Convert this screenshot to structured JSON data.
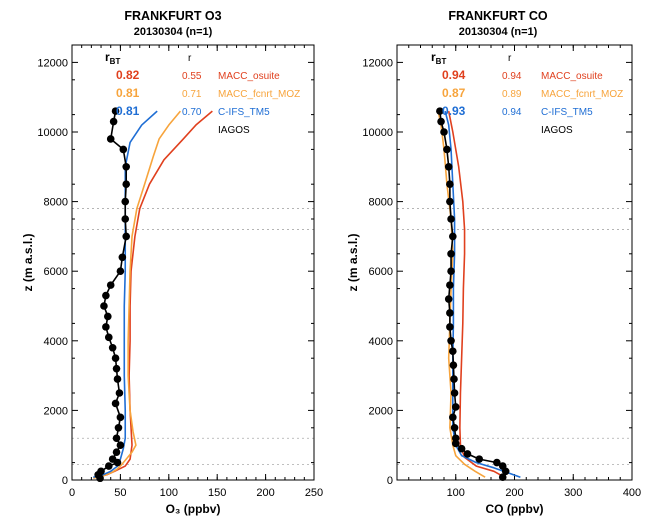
{
  "chart_data": [
    {
      "type": "line",
      "title": "FRANKFURT O3",
      "subtitle": "20130304 (n=1)",
      "xlabel": "O₃ (ppbv)",
      "ylabel": "z (m a.s.l.)",
      "xlim": [
        0,
        250
      ],
      "ylim": [
        0,
        12500
      ],
      "xticks": [
        "0",
        "50",
        "100",
        "150",
        "200",
        "250"
      ],
      "yticks": [
        "0",
        "2000",
        "4000",
        "6000",
        "8000",
        "10000",
        "12000"
      ],
      "hlines": [
        450,
        1200,
        7200,
        7800
      ],
      "stats_header": {
        "rbt_main": "r",
        "rbt_sub": "BT",
        "r": "r"
      },
      "legend_placement": "top-right",
      "series": [
        {
          "name": "MACC_osuite",
          "rbt": "0.82",
          "r": "0.55",
          "color": "#e0401e",
          "points": [
            [
              26,
              80
            ],
            [
              36,
              150
            ],
            [
              44,
              250
            ],
            [
              55,
              400
            ],
            [
              60,
              600
            ],
            [
              62,
              1000
            ],
            [
              61,
              1500
            ],
            [
              60,
              2000
            ],
            [
              59,
              3000
            ],
            [
              60,
              4000
            ],
            [
              60,
              5000
            ],
            [
              61,
              6000
            ],
            [
              65,
              7000
            ],
            [
              70,
              7800
            ],
            [
              80,
              8500
            ],
            [
              95,
              9200
            ],
            [
              115,
              9800
            ],
            [
              128,
              10200
            ],
            [
              145,
              10600
            ]
          ]
        },
        {
          "name": "MACC_fcnrt_MOZ",
          "rbt": "0.81",
          "r": "0.71",
          "color": "#f7a43c",
          "points": [
            [
              22,
              50
            ],
            [
              32,
              120
            ],
            [
              40,
              200
            ],
            [
              46,
              300
            ],
            [
              50,
              400
            ],
            [
              56,
              600
            ],
            [
              62,
              800
            ],
            [
              66,
              1000
            ],
            [
              63,
              1400
            ],
            [
              60,
              2000
            ],
            [
              58,
              3000
            ],
            [
              58,
              4000
            ],
            [
              59,
              5000
            ],
            [
              60,
              6000
            ],
            [
              62,
              7000
            ],
            [
              67,
              7800
            ],
            [
              75,
              8500
            ],
            [
              84,
              9300
            ],
            [
              90,
              9800
            ],
            [
              100,
              10200
            ],
            [
              112,
              10600
            ]
          ]
        },
        {
          "name": "C-IFS_TM5",
          "rbt": "0.81",
          "r": "0.70",
          "color": "#1f6ed4",
          "points": [
            [
              22,
              80
            ],
            [
              32,
              150
            ],
            [
              40,
              250
            ],
            [
              47,
              400
            ],
            [
              50,
              600
            ],
            [
              53,
              900
            ],
            [
              55,
              1200
            ],
            [
              55,
              2000
            ],
            [
              54,
              3000
            ],
            [
              54,
              4000
            ],
            [
              54,
              5000
            ],
            [
              55,
              6000
            ],
            [
              55,
              7000
            ],
            [
              55,
              8000
            ],
            [
              55,
              9000
            ],
            [
              60,
              9700
            ],
            [
              72,
              10200
            ],
            [
              88,
              10600
            ]
          ]
        },
        {
          "name": "IAGOS",
          "rbt": "",
          "r": "",
          "color": "#000000",
          "points": [
            [
              29,
              50
            ],
            [
              27,
              150
            ],
            [
              30,
              250
            ],
            [
              38,
              400
            ],
            [
              47,
              500
            ],
            [
              42,
              600
            ],
            [
              46,
              800
            ],
            [
              50,
              1000
            ],
            [
              46,
              1200
            ],
            [
              48,
              1500
            ],
            [
              50,
              1800
            ],
            [
              45,
              2200
            ],
            [
              49,
              2500
            ],
            [
              47,
              2900
            ],
            [
              46,
              3200
            ],
            [
              45,
              3500
            ],
            [
              42,
              3800
            ],
            [
              38,
              4100
            ],
            [
              35,
              4400
            ],
            [
              37,
              4700
            ],
            [
              33,
              5000
            ],
            [
              35,
              5300
            ],
            [
              40,
              5600
            ],
            [
              50,
              6000
            ],
            [
              52,
              6400
            ],
            [
              56,
              7000
            ],
            [
              55,
              7500
            ],
            [
              55,
              8000
            ],
            [
              56,
              8500
            ],
            [
              56,
              9000
            ],
            [
              53,
              9500
            ],
            [
              40,
              9800
            ],
            [
              43,
              10300
            ],
            [
              45,
              10600
            ]
          ]
        }
      ]
    },
    {
      "type": "line",
      "title": "FRANKFURT CO",
      "subtitle": "20130304 (n=1)",
      "xlabel": "CO (ppbv)",
      "ylabel": "z (m a.s.l.)",
      "xlim": [
        0,
        400
      ],
      "ylim": [
        0,
        12500
      ],
      "xticks": [
        "100",
        "200",
        "300",
        "400"
      ],
      "yticks": [
        "0",
        "2000",
        "4000",
        "6000",
        "8000",
        "10000",
        "12000"
      ],
      "hlines": [
        450,
        1200,
        7200,
        7800
      ],
      "stats_header": {
        "rbt_main": "r",
        "rbt_sub": "BT",
        "r": "r"
      },
      "legend_placement": "top-right",
      "series": [
        {
          "name": "MACC_osuite",
          "rbt": "0.94",
          "r": "0.94",
          "color": "#e0401e",
          "points": [
            [
              183,
              80
            ],
            [
              165,
              250
            ],
            [
              135,
              400
            ],
            [
              115,
              650
            ],
            [
              108,
              1000
            ],
            [
              107,
              1500
            ],
            [
              108,
              2500
            ],
            [
              110,
              3500
            ],
            [
              112,
              4500
            ],
            [
              113,
              5500
            ],
            [
              115,
              6500
            ],
            [
              115,
              7200
            ],
            [
              112,
              8000
            ],
            [
              105,
              9000
            ],
            [
              95,
              10000
            ],
            [
              88,
              10600
            ]
          ]
        },
        {
          "name": "MACC_fcnrt_MOZ",
          "rbt": "0.87",
          "r": "0.89",
          "color": "#f7a43c",
          "points": [
            [
              150,
              80
            ],
            [
              133,
              250
            ],
            [
              115,
              450
            ],
            [
              100,
              700
            ],
            [
              95,
              1000
            ],
            [
              90,
              1500
            ],
            [
              92,
              2500
            ],
            [
              88,
              3500
            ],
            [
              90,
              4500
            ],
            [
              92,
              5500
            ],
            [
              95,
              6500
            ],
            [
              92,
              7500
            ],
            [
              85,
              8500
            ],
            [
              80,
              9500
            ],
            [
              75,
              10200
            ],
            [
              70,
              10600
            ]
          ]
        },
        {
          "name": "C-IFS_TM5",
          "rbt": "0.93",
          "r": "0.94",
          "color": "#1f6ed4",
          "points": [
            [
              210,
              80
            ],
            [
              190,
              200
            ],
            [
              165,
              350
            ],
            [
              135,
              500
            ],
            [
              110,
              700
            ],
            [
              100,
              1000
            ],
            [
              95,
              1500
            ],
            [
              95,
              2500
            ],
            [
              95,
              3500
            ],
            [
              96,
              4500
            ],
            [
              96,
              5500
            ],
            [
              98,
              6500
            ],
            [
              98,
              7500
            ],
            [
              95,
              8500
            ],
            [
              92,
              9500
            ],
            [
              88,
              10200
            ],
            [
              82,
              10600
            ]
          ]
        },
        {
          "name": "IAGOS",
          "rbt": "",
          "r": "",
          "color": "#000000",
          "points": [
            [
              180,
              80
            ],
            [
              185,
              250
            ],
            [
              180,
              400
            ],
            [
              170,
              500
            ],
            [
              140,
              600
            ],
            [
              120,
              750
            ],
            [
              110,
              900
            ],
            [
              100,
              1050
            ],
            [
              100,
              1200
            ],
            [
              98,
              1500
            ],
            [
              95,
              1800
            ],
            [
              100,
              2100
            ],
            [
              98,
              2500
            ],
            [
              97,
              2900
            ],
            [
              96,
              3300
            ],
            [
              95,
              3700
            ],
            [
              92,
              4000
            ],
            [
              90,
              4400
            ],
            [
              90,
              4800
            ],
            [
              88,
              5200
            ],
            [
              90,
              5600
            ],
            [
              92,
              6000
            ],
            [
              92,
              6500
            ],
            [
              95,
              7000
            ],
            [
              92,
              7500
            ],
            [
              90,
              8000
            ],
            [
              90,
              8500
            ],
            [
              88,
              9000
            ],
            [
              85,
              9500
            ],
            [
              80,
              10000
            ],
            [
              75,
              10300
            ],
            [
              73,
              10600
            ]
          ]
        }
      ]
    }
  ]
}
